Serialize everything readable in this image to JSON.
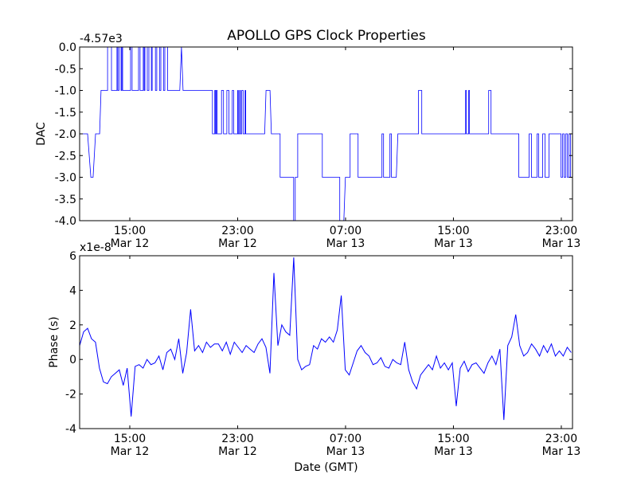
{
  "title": "APOLLO GPS Clock Properties",
  "chart_data": [
    {
      "type": "line",
      "ylabel": "DAC",
      "xlabel": "",
      "offset_text": "-4.57e3",
      "xlim": [
        11.28,
        47.83
      ],
      "ylim": [
        -4.0,
        0.0
      ],
      "x_units": "hours since Mar 12 00:00 (GMT)",
      "xticks": [
        {
          "value": 15,
          "time": "15:00",
          "date": "Mar 12"
        },
        {
          "value": 23,
          "time": "23:00",
          "date": "Mar 12"
        },
        {
          "value": 31,
          "time": "07:00",
          "date": "Mar 13"
        },
        {
          "value": 39,
          "time": "15:00",
          "date": "Mar 13"
        },
        {
          "value": 47,
          "time": "23:00",
          "date": "Mar 13"
        }
      ],
      "yticks": [
        {
          "value": 0.0,
          "label": "0.0"
        },
        {
          "value": -0.5,
          "label": "-0.5"
        },
        {
          "value": -1.0,
          "label": "-1.0"
        },
        {
          "value": -1.5,
          "label": "-1.5"
        },
        {
          "value": -2.0,
          "label": "-2.0"
        },
        {
          "value": -2.5,
          "label": "-2.5"
        },
        {
          "value": -3.0,
          "label": "-3.0"
        },
        {
          "value": -3.5,
          "label": "-3.5"
        },
        {
          "value": -4.0,
          "label": "-4.0"
        }
      ],
      "color": "#0000ff",
      "points": [
        [
          11.28,
          -2
        ],
        [
          11.87,
          -2
        ],
        [
          12.11,
          -3
        ],
        [
          12.28,
          -3
        ],
        [
          12.46,
          -2
        ],
        [
          12.76,
          -2
        ],
        [
          12.87,
          -1
        ],
        [
          13.35,
          -1
        ],
        [
          13.35,
          0
        ],
        [
          13.64,
          0
        ],
        [
          13.64,
          -1
        ],
        [
          14.05,
          -1
        ],
        [
          14.05,
          0
        ],
        [
          14.11,
          0
        ],
        [
          14.11,
          -1
        ],
        [
          14.2,
          -1
        ],
        [
          14.2,
          0
        ],
        [
          14.35,
          0
        ],
        [
          14.35,
          -1
        ],
        [
          14.41,
          -1
        ],
        [
          14.41,
          0
        ],
        [
          14.47,
          0
        ],
        [
          14.47,
          -1
        ],
        [
          15.06,
          -1
        ],
        [
          15.06,
          0
        ],
        [
          15.17,
          0
        ],
        [
          15.17,
          -1
        ],
        [
          15.65,
          -1
        ],
        [
          15.65,
          0
        ],
        [
          15.76,
          0
        ],
        [
          15.76,
          -1
        ],
        [
          16.0,
          -1
        ],
        [
          16.0,
          0
        ],
        [
          16.06,
          0
        ],
        [
          16.06,
          -1
        ],
        [
          16.12,
          -1
        ],
        [
          16.12,
          0
        ],
        [
          16.3,
          0
        ],
        [
          16.3,
          -1
        ],
        [
          16.42,
          -1
        ],
        [
          16.42,
          0
        ],
        [
          16.6,
          0
        ],
        [
          16.6,
          -1
        ],
        [
          16.66,
          -1
        ],
        [
          16.66,
          0
        ],
        [
          16.9,
          0
        ],
        [
          16.9,
          -1
        ],
        [
          17.0,
          -1
        ],
        [
          17.0,
          0
        ],
        [
          17.2,
          0
        ],
        [
          17.2,
          -1
        ],
        [
          17.3,
          -1
        ],
        [
          17.3,
          0
        ],
        [
          17.5,
          0
        ],
        [
          17.5,
          -1
        ],
        [
          17.6,
          -1
        ],
        [
          17.6,
          0
        ],
        [
          17.8,
          0
        ],
        [
          17.8,
          -1
        ],
        [
          18.71,
          -1
        ],
        [
          18.83,
          0
        ],
        [
          18.95,
          -1
        ],
        [
          21.13,
          -1
        ],
        [
          21.13,
          -2
        ],
        [
          21.3,
          -2
        ],
        [
          21.3,
          -1
        ],
        [
          21.36,
          -1
        ],
        [
          21.36,
          -2
        ],
        [
          21.42,
          -2
        ],
        [
          21.42,
          -1
        ],
        [
          21.48,
          -1
        ],
        [
          21.48,
          -2
        ],
        [
          21.8,
          -2
        ],
        [
          21.8,
          -1
        ],
        [
          21.95,
          -1
        ],
        [
          21.95,
          -2
        ],
        [
          22.2,
          -2
        ],
        [
          22.2,
          -1
        ],
        [
          22.35,
          -1
        ],
        [
          22.35,
          -2
        ],
        [
          22.6,
          -2
        ],
        [
          22.6,
          -1
        ],
        [
          22.7,
          -1
        ],
        [
          22.7,
          -2
        ],
        [
          23.0,
          -2
        ],
        [
          23.0,
          -1
        ],
        [
          23.05,
          -1
        ],
        [
          23.05,
          -2
        ],
        [
          23.15,
          -2
        ],
        [
          23.15,
          -1
        ],
        [
          23.2,
          -1
        ],
        [
          23.2,
          -2
        ],
        [
          23.3,
          -2
        ],
        [
          23.3,
          -1
        ],
        [
          23.4,
          -1
        ],
        [
          23.4,
          -2
        ],
        [
          23.55,
          -2
        ],
        [
          23.55,
          -1
        ],
        [
          23.6,
          -1
        ],
        [
          23.6,
          -2
        ],
        [
          25.0,
          -2
        ],
        [
          25.1,
          -1
        ],
        [
          25.4,
          -1
        ],
        [
          25.5,
          -2
        ],
        [
          26.15,
          -2
        ],
        [
          26.15,
          -3
        ],
        [
          27.15,
          -3
        ],
        [
          27.15,
          -4
        ],
        [
          27.27,
          -4
        ],
        [
          27.27,
          -3
        ],
        [
          27.45,
          -3
        ],
        [
          27.45,
          -2
        ],
        [
          29.28,
          -2
        ],
        [
          29.28,
          -3
        ],
        [
          30.57,
          -3
        ],
        [
          30.57,
          -4
        ],
        [
          30.87,
          -4
        ],
        [
          30.99,
          -3
        ],
        [
          31.34,
          -3
        ],
        [
          31.34,
          -2
        ],
        [
          31.93,
          -2
        ],
        [
          31.93,
          -3
        ],
        [
          33.7,
          -3
        ],
        [
          33.7,
          -2
        ],
        [
          33.82,
          -2
        ],
        [
          33.82,
          -3
        ],
        [
          34.29,
          -3
        ],
        [
          34.29,
          -2
        ],
        [
          34.4,
          -2
        ],
        [
          34.4,
          -3
        ],
        [
          34.76,
          -3
        ],
        [
          34.88,
          -2
        ],
        [
          36.41,
          -2
        ],
        [
          36.41,
          -1
        ],
        [
          36.65,
          -1
        ],
        [
          36.65,
          -2
        ],
        [
          39.9,
          -2
        ],
        [
          39.9,
          -1
        ],
        [
          39.96,
          -1
        ],
        [
          39.96,
          -2
        ],
        [
          40.13,
          -2
        ],
        [
          40.13,
          -1
        ],
        [
          40.19,
          -1
        ],
        [
          40.19,
          -2
        ],
        [
          41.61,
          -2
        ],
        [
          41.61,
          -1
        ],
        [
          41.79,
          -1
        ],
        [
          41.79,
          -2
        ],
        [
          43.85,
          -2
        ],
        [
          43.85,
          -3
        ],
        [
          44.62,
          -3
        ],
        [
          44.62,
          -2
        ],
        [
          44.79,
          -2
        ],
        [
          44.79,
          -3
        ],
        [
          45.2,
          -3
        ],
        [
          45.2,
          -2
        ],
        [
          45.32,
          -2
        ],
        [
          45.32,
          -3
        ],
        [
          45.62,
          -3
        ],
        [
          45.62,
          -2
        ],
        [
          45.79,
          -2
        ],
        [
          45.79,
          -3
        ],
        [
          46.09,
          -3
        ],
        [
          46.09,
          -2
        ],
        [
          46.98,
          -2
        ],
        [
          46.98,
          -3
        ],
        [
          47.1,
          -3
        ],
        [
          47.1,
          -2
        ],
        [
          47.21,
          -2
        ],
        [
          47.21,
          -3
        ],
        [
          47.33,
          -3
        ],
        [
          47.33,
          -2
        ],
        [
          47.45,
          -2
        ],
        [
          47.45,
          -3
        ],
        [
          47.57,
          -3
        ],
        [
          47.57,
          -2
        ],
        [
          47.69,
          -2
        ],
        [
          47.69,
          -3
        ],
        [
          47.8,
          -3
        ]
      ]
    },
    {
      "type": "line",
      "ylabel": "Phase (s)",
      "xlabel": "Date (GMT)",
      "offset_text": "x1e-8",
      "xlim": [
        11.28,
        47.83
      ],
      "ylim": [
        -4,
        6
      ],
      "x_units": "hours since Mar 12 00:00 (GMT)",
      "xticks": [
        {
          "value": 15,
          "time": "15:00",
          "date": "Mar 12"
        },
        {
          "value": 23,
          "time": "23:00",
          "date": "Mar 12"
        },
        {
          "value": 31,
          "time": "07:00",
          "date": "Mar 13"
        },
        {
          "value": 39,
          "time": "15:00",
          "date": "Mar 13"
        },
        {
          "value": 47,
          "time": "23:00",
          "date": "Mar 13"
        }
      ],
      "yticks": [
        {
          "value": 6,
          "label": "6"
        },
        {
          "value": 4,
          "label": "4"
        },
        {
          "value": 2,
          "label": "2"
        },
        {
          "value": 0,
          "label": "0"
        },
        {
          "value": -2,
          "label": "-2"
        },
        {
          "value": -4,
          "label": "-4"
        }
      ],
      "color": "#0000ff",
      "x_start": 11.28,
      "x_step": 0.294,
      "values": [
        0.8,
        1.6,
        1.8,
        1.2,
        1.0,
        -0.5,
        -1.3,
        -1.4,
        -1.0,
        -0.8,
        -0.6,
        -1.5,
        -0.5,
        -3.3,
        -0.4,
        -0.3,
        -0.5,
        0.0,
        -0.3,
        -0.2,
        0.2,
        -0.6,
        0.4,
        0.6,
        0.0,
        1.2,
        -0.8,
        0.4,
        2.9,
        0.5,
        0.8,
        0.4,
        1.0,
        0.7,
        0.9,
        0.9,
        0.5,
        1.0,
        0.3,
        1.0,
        0.7,
        0.4,
        0.8,
        0.6,
        0.4,
        0.9,
        1.2,
        0.7,
        -0.8,
        5.0,
        0.8,
        2.0,
        1.6,
        1.4,
        5.9,
        0.0,
        -0.6,
        -0.4,
        -0.3,
        0.8,
        0.6,
        1.2,
        1.0,
        1.3,
        1.0,
        1.7,
        3.7,
        -0.6,
        -0.9,
        -0.2,
        0.5,
        0.8,
        0.4,
        0.2,
        -0.3,
        -0.2,
        0.1,
        -0.4,
        -0.5,
        0.0,
        -0.2,
        -0.3,
        1.0,
        -0.6,
        -1.3,
        -1.7,
        -0.9,
        -0.6,
        -0.3,
        -0.6,
        0.2,
        -0.5,
        -0.2,
        -0.6,
        -0.2,
        -2.7,
        -0.5,
        -0.1,
        -0.7,
        -0.3,
        -0.2,
        -0.5,
        -0.8,
        -0.2,
        0.2,
        -0.3,
        0.6,
        -3.5,
        0.8,
        1.3,
        2.6,
        0.8,
        0.2,
        0.4,
        0.9,
        0.6,
        0.2,
        0.8,
        0.4,
        0.9,
        0.2,
        0.5,
        0.2,
        0.7,
        0.4
      ]
    }
  ]
}
